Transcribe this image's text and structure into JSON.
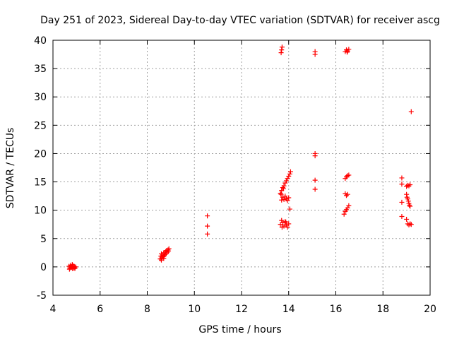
{
  "chart_data": {
    "type": "scatter",
    "title": "Day 251 of 2023, Sidereal Day-to-day VTEC variation (SDTVAR) for receiver ascg",
    "xlabel": "GPS time / hours",
    "ylabel": "SDTVAR / TECUs",
    "xlim": [
      4,
      20
    ],
    "ylim": [
      -5,
      40
    ],
    "xticks": [
      4,
      6,
      8,
      10,
      12,
      14,
      16,
      18,
      20
    ],
    "yticks": [
      -5,
      0,
      5,
      10,
      15,
      20,
      25,
      30,
      35,
      40
    ],
    "grid": true,
    "marker": "+",
    "color": "#ff0000",
    "series": [
      {
        "name": "SDTVAR",
        "points": [
          [
            4.68,
            0.1
          ],
          [
            4.72,
            -0.2
          ],
          [
            4.75,
            0.3
          ],
          [
            4.78,
            -0.1
          ],
          [
            4.8,
            0.0
          ],
          [
            4.83,
            -0.3
          ],
          [
            4.85,
            0.2
          ],
          [
            4.88,
            -0.2
          ],
          [
            4.9,
            0.1
          ],
          [
            4.93,
            -0.3
          ],
          [
            4.96,
            0.0
          ],
          [
            4.7,
            -0.4
          ],
          [
            4.82,
            0.4
          ],
          [
            4.92,
            -0.1
          ],
          [
            8.55,
            1.4
          ],
          [
            8.58,
            1.9
          ],
          [
            8.6,
            2.3
          ],
          [
            8.62,
            1.6
          ],
          [
            8.65,
            2.1
          ],
          [
            8.68,
            1.8
          ],
          [
            8.7,
            2.5
          ],
          [
            8.72,
            2.0
          ],
          [
            8.75,
            2.2
          ],
          [
            8.78,
            2.7
          ],
          [
            8.8,
            2.3
          ],
          [
            8.82,
            2.9
          ],
          [
            8.85,
            2.6
          ],
          [
            8.88,
            3.0
          ],
          [
            8.9,
            2.8
          ],
          [
            8.92,
            3.2
          ],
          [
            8.6,
            1.2
          ],
          [
            8.7,
            1.5
          ],
          [
            10.55,
            9.0
          ],
          [
            10.55,
            7.2
          ],
          [
            10.55,
            5.8
          ],
          [
            13.65,
            7.5
          ],
          [
            13.7,
            8.2
          ],
          [
            13.75,
            7.8
          ],
          [
            13.8,
            7.2
          ],
          [
            13.85,
            8.0
          ],
          [
            13.9,
            7.4
          ],
          [
            13.95,
            7.0
          ],
          [
            14.0,
            7.6
          ],
          [
            13.72,
            7.0
          ],
          [
            13.88,
            7.9
          ],
          [
            13.7,
            11.8
          ],
          [
            13.75,
            12.3
          ],
          [
            13.8,
            11.9
          ],
          [
            13.85,
            12.5
          ],
          [
            13.9,
            12.0
          ],
          [
            13.95,
            11.7
          ],
          [
            14.0,
            12.2
          ],
          [
            14.05,
            10.2
          ],
          [
            13.65,
            13.0
          ],
          [
            13.7,
            13.5
          ],
          [
            13.75,
            14.0
          ],
          [
            13.8,
            14.3
          ],
          [
            13.85,
            14.8
          ],
          [
            13.9,
            15.2
          ],
          [
            13.95,
            15.6
          ],
          [
            14.0,
            16.0
          ],
          [
            14.05,
            16.4
          ],
          [
            14.08,
            16.8
          ],
          [
            13.68,
            12.8
          ],
          [
            13.78,
            13.8
          ],
          [
            13.68,
            37.8
          ],
          [
            13.7,
            38.3
          ],
          [
            13.72,
            38.8
          ],
          [
            15.12,
            37.5
          ],
          [
            15.12,
            38.0
          ],
          [
            15.12,
            20.0
          ],
          [
            15.12,
            19.6
          ],
          [
            15.12,
            15.3
          ],
          [
            15.12,
            13.7
          ],
          [
            16.4,
            38.0
          ],
          [
            16.45,
            38.3
          ],
          [
            16.5,
            38.1
          ],
          [
            16.55,
            38.4
          ],
          [
            16.48,
            37.9
          ],
          [
            16.4,
            15.6
          ],
          [
            16.45,
            15.9
          ],
          [
            16.5,
            16.1
          ],
          [
            16.55,
            16.2
          ],
          [
            16.4,
            12.9
          ],
          [
            16.45,
            12.6
          ],
          [
            16.5,
            12.8
          ],
          [
            16.35,
            9.3
          ],
          [
            16.4,
            9.8
          ],
          [
            16.45,
            10.1
          ],
          [
            16.5,
            10.4
          ],
          [
            16.55,
            10.8
          ],
          [
            18.8,
            15.7
          ],
          [
            18.8,
            14.6
          ],
          [
            18.8,
            11.4
          ],
          [
            18.8,
            8.9
          ],
          [
            19.0,
            14.2
          ],
          [
            19.05,
            14.4
          ],
          [
            19.1,
            14.3
          ],
          [
            19.15,
            14.5
          ],
          [
            19.0,
            12.8
          ],
          [
            19.02,
            12.3
          ],
          [
            19.05,
            12.0
          ],
          [
            19.08,
            11.6
          ],
          [
            19.1,
            11.2
          ],
          [
            19.12,
            10.9
          ],
          [
            19.15,
            10.7
          ],
          [
            19.0,
            8.4
          ],
          [
            19.05,
            7.6
          ],
          [
            19.1,
            7.4
          ],
          [
            19.15,
            7.6
          ],
          [
            19.2,
            7.5
          ],
          [
            19.2,
            27.4
          ]
        ]
      }
    ]
  }
}
